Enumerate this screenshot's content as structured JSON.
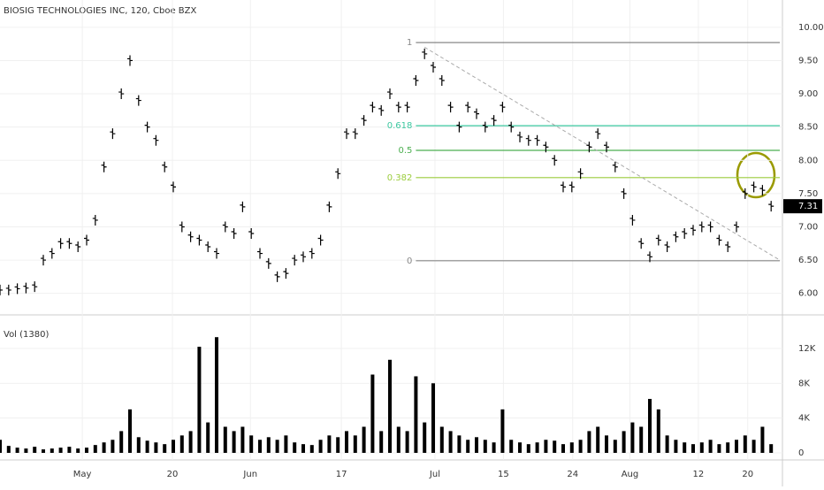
{
  "chart_data": {
    "type": "ohlc-volume",
    "title": "BIOSIG TECHNOLOGIES INC, 120, Cboe BZX",
    "volume_title": "Vol (1380)",
    "x": [
      0,
      1,
      2,
      3,
      4,
      5,
      6,
      7,
      8,
      9,
      10,
      11,
      12,
      13,
      14,
      15,
      16,
      17,
      18,
      19,
      20,
      21,
      22,
      23,
      24,
      25,
      26,
      27,
      28,
      29,
      30,
      31,
      32,
      33,
      34,
      35,
      36,
      37,
      38,
      39,
      40,
      41,
      42,
      43,
      44,
      45,
      46,
      47,
      48,
      49,
      50,
      51,
      52,
      53,
      54,
      55,
      56,
      57,
      58,
      59,
      60,
      61,
      62,
      63,
      64,
      65,
      66,
      67,
      68,
      69,
      70,
      71,
      72,
      73,
      74,
      75,
      76,
      77,
      78,
      79,
      80,
      81,
      82,
      83,
      84,
      85,
      86,
      87,
      88,
      89
    ],
    "xlim": [
      0,
      90
    ],
    "xticks": [
      {
        "value": 9.5,
        "label": "May"
      },
      {
        "value": 19.9,
        "label": "20"
      },
      {
        "value": 28.9,
        "label": "Jun"
      },
      {
        "value": 39.4,
        "label": "17"
      },
      {
        "value": 50.2,
        "label": "Jul"
      },
      {
        "value": 58.1,
        "label": "15"
      },
      {
        "value": 66.1,
        "label": "24"
      },
      {
        "value": 72.7,
        "label": "Aug"
      },
      {
        "value": 80.6,
        "label": "12"
      },
      {
        "value": 86.3,
        "label": "20"
      }
    ],
    "series": [
      {
        "name": "Price",
        "color": "#000000",
        "values": [
          6.05,
          6.05,
          6.07,
          6.08,
          6.1,
          6.5,
          6.6,
          6.75,
          6.75,
          6.7,
          6.8,
          7.1,
          7.9,
          8.4,
          9.0,
          9.5,
          8.9,
          8.5,
          8.3,
          7.9,
          7.6,
          7.0,
          6.85,
          6.8,
          6.7,
          6.6,
          7.0,
          6.9,
          7.3,
          6.9,
          6.6,
          6.45,
          6.25,
          6.3,
          6.5,
          6.55,
          6.6,
          6.8,
          7.3,
          7.8,
          8.4,
          8.4,
          8.6,
          8.8,
          8.75,
          9.0,
          8.8,
          8.8,
          9.2,
          9.6,
          9.4,
          9.2,
          8.8,
          8.5,
          8.8,
          8.7,
          8.5,
          8.6,
          8.8,
          8.5,
          8.35,
          8.3,
          8.3,
          8.2,
          8.0,
          7.6,
          7.6,
          7.8,
          8.2,
          8.4,
          8.2,
          7.9,
          7.5,
          7.1,
          6.75,
          6.55,
          6.8,
          6.7,
          6.85,
          6.9,
          6.95,
          7.0,
          7.0,
          6.8,
          6.7,
          7.0,
          7.5,
          7.6,
          7.55,
          7.31
        ]
      },
      {
        "name": "Vol",
        "color": "#000000",
        "axis": "y2",
        "values": [
          1500,
          800,
          600,
          500,
          700,
          400,
          500,
          600,
          700,
          500,
          600,
          900,
          1200,
          1500,
          2500,
          5000,
          1800,
          1400,
          1200,
          1000,
          1500,
          2000,
          2500,
          12200,
          3500,
          13300,
          3000,
          2500,
          3000,
          2000,
          1500,
          1800,
          1500,
          2000,
          1200,
          1000,
          900,
          1500,
          2000,
          1800,
          2500,
          2000,
          3000,
          9000,
          2500,
          10700,
          3000,
          2500,
          8800,
          3500,
          8000,
          3000,
          2500,
          2000,
          1500,
          1800,
          1500,
          1200,
          5000,
          1500,
          1200,
          1000,
          1200,
          1500,
          1400,
          1000,
          1200,
          1500,
          2500,
          3000,
          2000,
          1500,
          2500,
          3500,
          3000,
          6200,
          5000,
          2000,
          1500,
          1200,
          1000,
          1200,
          1500,
          1000,
          1200,
          1500,
          2000,
          1500,
          3000,
          1000
        ]
      }
    ],
    "ylim": [
      5.69,
      10.41
    ],
    "yticks": [
      {
        "value": 6,
        "label": "6.00"
      },
      {
        "value": 6.5,
        "label": "6.50"
      },
      {
        "value": 7,
        "label": "7.00"
      },
      {
        "value": 7.5,
        "label": "7.50"
      },
      {
        "value": 8,
        "label": "8.00"
      },
      {
        "value": 8.5,
        "label": "8.50"
      },
      {
        "value": 9,
        "label": "9.00"
      },
      {
        "value": 9.5,
        "label": "9.50"
      },
      {
        "value": 10,
        "label": "10.00"
      }
    ],
    "y2lim": [
      -305,
      15661
    ],
    "y2ticks": [
      0,
      {
        "value": 4000,
        "label": "4K"
      },
      {
        "value": 8000,
        "label": "8K"
      },
      {
        "value": 12000,
        "label": "12K"
      }
    ],
    "fib_levels": [
      {
        "label": "1",
        "value": 9.77,
        "color": "#888888"
      },
      {
        "label": "0.618",
        "value": 8.52,
        "color": "#3cc8a0"
      },
      {
        "label": "0.5",
        "value": 8.15,
        "color": "#4caf50"
      },
      {
        "label": "0.382",
        "value": 7.74,
        "color": "#9bcc3c"
      },
      {
        "label": "0",
        "value": 6.49,
        "color": "#888888"
      }
    ],
    "fib_x": [
      48,
      90
    ],
    "trendline": {
      "x": [
        49,
        90
      ],
      "y": [
        9.7,
        6.5
      ]
    }
  }
}
